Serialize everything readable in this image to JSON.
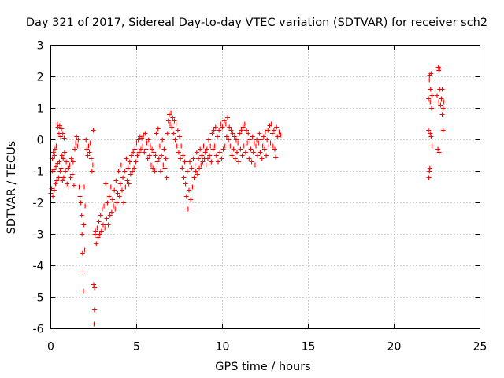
{
  "chart_data": {
    "type": "scatter",
    "title": "Day 321 of 2017, Sidereal Day-to-day VTEC variation (SDTVAR) for receiver sch2",
    "xlabel": "GPS time / hours",
    "ylabel": "SDTVAR / TECUs",
    "xlim": [
      0,
      25
    ],
    "ylim": [
      -6,
      3
    ],
    "xticks": [
      "0",
      "5",
      "10",
      "15",
      "20",
      "25"
    ],
    "yticks": [
      "-6",
      "-5",
      "-4",
      "-3",
      "-2",
      "-1",
      "0",
      "1",
      "2",
      "3"
    ],
    "grid": true,
    "marker": "+",
    "color": "#ff0000",
    "series": [
      {
        "name": "SDTVAR",
        "points": [
          [
            0.0,
            -1.7
          ],
          [
            0.05,
            -1.55
          ],
          [
            0.08,
            -1.0
          ],
          [
            0.1,
            -0.6
          ],
          [
            0.12,
            -1.8
          ],
          [
            0.15,
            -0.4
          ],
          [
            0.18,
            -0.95
          ],
          [
            0.2,
            -1.6
          ],
          [
            0.22,
            -0.5
          ],
          [
            0.25,
            -0.3
          ],
          [
            0.28,
            -1.4
          ],
          [
            0.3,
            -0.85
          ],
          [
            0.32,
            -0.2
          ],
          [
            0.35,
            -1.3
          ],
          [
            0.38,
            0.5
          ],
          [
            0.4,
            -0.75
          ],
          [
            0.42,
            0.4
          ],
          [
            0.45,
            -1.2
          ],
          [
            0.48,
            0.2
          ],
          [
            0.5,
            -0.7
          ],
          [
            0.52,
            0.45
          ],
          [
            0.55,
            -1.0
          ],
          [
            0.58,
            0.1
          ],
          [
            0.6,
            -0.9
          ],
          [
            0.62,
            0.35
          ],
          [
            0.65,
            -0.5
          ],
          [
            0.68,
            -1.3
          ],
          [
            0.7,
            0.2
          ],
          [
            0.72,
            -0.6
          ],
          [
            0.75,
            -1.2
          ],
          [
            0.78,
            0.05
          ],
          [
            0.8,
            -0.4
          ],
          [
            0.85,
            -1.0
          ],
          [
            0.9,
            -0.7
          ],
          [
            0.95,
            -1.4
          ],
          [
            1.0,
            -0.9
          ],
          [
            1.05,
            -1.5
          ],
          [
            1.1,
            -0.8
          ],
          [
            1.15,
            -1.2
          ],
          [
            1.2,
            -0.6
          ],
          [
            1.25,
            -1.1
          ],
          [
            1.3,
            -0.7
          ],
          [
            1.35,
            -1.45
          ],
          [
            1.4,
            -0.3
          ],
          [
            1.45,
            -0.1
          ],
          [
            1.5,
            0.1
          ],
          [
            1.55,
            -0.2
          ],
          [
            1.6,
            0.0
          ],
          [
            1.65,
            -1.5
          ],
          [
            1.7,
            -1.8
          ],
          [
            1.75,
            -2.0
          ],
          [
            1.8,
            -2.4
          ],
          [
            1.82,
            -3.0
          ],
          [
            1.85,
            -3.6
          ],
          [
            1.88,
            -4.2
          ],
          [
            1.9,
            -4.8
          ],
          [
            1.92,
            -2.7
          ],
          [
            1.95,
            -1.5
          ],
          [
            1.98,
            -3.5
          ],
          [
            2.0,
            -2.1
          ],
          [
            2.05,
            0.0
          ],
          [
            2.1,
            -0.3
          ],
          [
            2.15,
            -0.5
          ],
          [
            2.2,
            -0.2
          ],
          [
            2.25,
            -0.4
          ],
          [
            2.3,
            -0.1
          ],
          [
            2.35,
            -0.6
          ],
          [
            2.4,
            -1.0
          ],
          [
            2.45,
            -0.8
          ],
          [
            2.48,
            0.3
          ],
          [
            2.5,
            -4.6
          ],
          [
            2.52,
            -5.85
          ],
          [
            2.54,
            -5.4
          ],
          [
            2.55,
            -4.7
          ],
          [
            2.58,
            -3.0
          ],
          [
            2.6,
            -2.9
          ],
          [
            2.65,
            -3.3
          ],
          [
            2.7,
            -2.8
          ],
          [
            2.75,
            -3.1
          ],
          [
            2.8,
            -2.6
          ],
          [
            2.85,
            -3.0
          ],
          [
            2.9,
            -2.4
          ],
          [
            2.95,
            -2.9
          ],
          [
            3.0,
            -2.2
          ],
          [
            3.05,
            -2.7
          ],
          [
            3.1,
            -2.1
          ],
          [
            3.15,
            -2.8
          ],
          [
            3.2,
            -1.4
          ],
          [
            3.25,
            -2.5
          ],
          [
            3.3,
            -2.0
          ],
          [
            3.35,
            -2.7
          ],
          [
            3.4,
            -1.8
          ],
          [
            3.45,
            -2.4
          ],
          [
            3.5,
            -1.5
          ],
          [
            3.55,
            -2.3
          ],
          [
            3.6,
            -1.9
          ],
          [
            3.65,
            -2.1
          ],
          [
            3.7,
            -1.6
          ],
          [
            3.75,
            -2.2
          ],
          [
            3.8,
            -1.3
          ],
          [
            3.85,
            -2.0
          ],
          [
            3.9,
            -1.7
          ],
          [
            3.95,
            -1.0
          ],
          [
            4.0,
            -1.8
          ],
          [
            4.05,
            -1.4
          ],
          [
            4.1,
            -0.8
          ],
          [
            4.15,
            -1.6
          ],
          [
            4.2,
            -1.2
          ],
          [
            4.25,
            -2.0
          ],
          [
            4.3,
            -1.0
          ],
          [
            4.35,
            -1.5
          ],
          [
            4.4,
            -0.6
          ],
          [
            4.45,
            -1.3
          ],
          [
            4.5,
            -0.9
          ],
          [
            4.55,
            -1.4
          ],
          [
            4.6,
            -0.7
          ],
          [
            4.65,
            -1.1
          ],
          [
            4.7,
            -0.5
          ],
          [
            4.75,
            -1.0
          ],
          [
            4.8,
            -0.4
          ],
          [
            4.85,
            -0.9
          ],
          [
            4.9,
            -0.3
          ],
          [
            4.95,
            -0.7
          ],
          [
            5.0,
            -0.1
          ],
          [
            5.05,
            -0.5
          ],
          [
            5.1,
            0.0
          ],
          [
            5.15,
            -0.4
          ],
          [
            5.2,
            0.1
          ],
          [
            5.25,
            -0.3
          ],
          [
            5.3,
            0.05
          ],
          [
            5.35,
            -0.2
          ],
          [
            5.4,
            0.15
          ],
          [
            5.45,
            -0.4
          ],
          [
            5.5,
            0.2
          ],
          [
            5.55,
            -0.3
          ],
          [
            5.6,
            -0.1
          ],
          [
            5.65,
            -0.6
          ],
          [
            5.7,
            0.0
          ],
          [
            5.75,
            -0.5
          ],
          [
            5.8,
            -0.2
          ],
          [
            5.85,
            -0.8
          ],
          [
            5.9,
            -0.3
          ],
          [
            5.95,
            -0.9
          ],
          [
            6.0,
            -0.4
          ],
          [
            6.05,
            -1.0
          ],
          [
            6.1,
            -0.5
          ],
          [
            6.15,
            0.2
          ],
          [
            6.2,
            -0.7
          ],
          [
            6.25,
            0.35
          ],
          [
            6.3,
            -0.6
          ],
          [
            6.35,
            -0.2
          ],
          [
            6.4,
            -1.0
          ],
          [
            6.45,
            -0.5
          ],
          [
            6.5,
            0.0
          ],
          [
            6.55,
            -0.8
          ],
          [
            6.6,
            -0.3
          ],
          [
            6.65,
            -0.9
          ],
          [
            6.7,
            -0.6
          ],
          [
            6.75,
            -1.2
          ],
          [
            6.8,
            0.2
          ],
          [
            6.85,
            0.6
          ],
          [
            6.9,
            0.8
          ],
          [
            6.95,
            0.5
          ],
          [
            7.0,
            0.85
          ],
          [
            7.05,
            0.4
          ],
          [
            7.1,
            0.7
          ],
          [
            7.15,
            0.2
          ],
          [
            7.2,
            0.6
          ],
          [
            7.25,
            0.0
          ],
          [
            7.3,
            0.5
          ],
          [
            7.35,
            -0.2
          ],
          [
            7.4,
            0.3
          ],
          [
            7.45,
            -0.4
          ],
          [
            7.5,
            0.1
          ],
          [
            7.55,
            -0.6
          ],
          [
            7.6,
            -0.2
          ],
          [
            7.65,
            -0.9
          ],
          [
            7.7,
            -0.5
          ],
          [
            7.75,
            -1.2
          ],
          [
            7.8,
            -0.7
          ],
          [
            7.85,
            -1.4
          ],
          [
            7.9,
            -1.8
          ],
          [
            7.95,
            -1.0
          ],
          [
            8.0,
            -2.2
          ],
          [
            8.05,
            -1.6
          ],
          [
            8.1,
            -0.7
          ],
          [
            8.15,
            -1.9
          ],
          [
            8.2,
            -0.9
          ],
          [
            8.25,
            -1.5
          ],
          [
            8.3,
            -0.6
          ],
          [
            8.35,
            -1.2
          ],
          [
            8.4,
            -0.8
          ],
          [
            8.45,
            -1.0
          ],
          [
            8.5,
            -0.4
          ],
          [
            8.55,
            -1.1
          ],
          [
            8.6,
            -0.6
          ],
          [
            8.65,
            -0.9
          ],
          [
            8.7,
            -0.3
          ],
          [
            8.75,
            -0.8
          ],
          [
            8.8,
            -0.5
          ],
          [
            8.85,
            -0.7
          ],
          [
            8.9,
            -0.2
          ],
          [
            8.95,
            -0.6
          ],
          [
            9.0,
            -0.4
          ],
          [
            9.05,
            -0.8
          ],
          [
            9.1,
            -0.3
          ],
          [
            9.15,
            -0.6
          ],
          [
            9.2,
            0.0
          ],
          [
            9.25,
            -0.5
          ],
          [
            9.3,
            -0.2
          ],
          [
            9.35,
            -0.7
          ],
          [
            9.4,
            0.2
          ],
          [
            9.45,
            -0.3
          ],
          [
            9.5,
            0.3
          ],
          [
            9.55,
            -0.2
          ],
          [
            9.6,
            0.4
          ],
          [
            9.65,
            -0.5
          ],
          [
            9.7,
            0.1
          ],
          [
            9.75,
            -0.7
          ],
          [
            9.8,
            0.3
          ],
          [
            9.85,
            -0.4
          ],
          [
            9.9,
            0.5
          ],
          [
            9.95,
            -0.6
          ],
          [
            10.0,
            0.4
          ],
          [
            10.05,
            -0.3
          ],
          [
            10.1,
            0.6
          ],
          [
            10.15,
            -0.2
          ],
          [
            10.2,
            0.5
          ],
          [
            10.25,
            0.1
          ],
          [
            10.3,
            0.7
          ],
          [
            10.35,
            0.0
          ],
          [
            10.4,
            0.4
          ],
          [
            10.45,
            -0.2
          ],
          [
            10.5,
            0.3
          ],
          [
            10.55,
            -0.5
          ],
          [
            10.6,
            0.2
          ],
          [
            10.65,
            -0.3
          ],
          [
            10.7,
            0.1
          ],
          [
            10.75,
            -0.6
          ],
          [
            10.8,
            0.0
          ],
          [
            10.85,
            -0.4
          ],
          [
            10.9,
            -0.1
          ],
          [
            10.95,
            -0.7
          ],
          [
            11.0,
            0.2
          ],
          [
            11.05,
            -0.3
          ],
          [
            11.1,
            0.3
          ],
          [
            11.15,
            -0.5
          ],
          [
            11.2,
            0.4
          ],
          [
            11.25,
            -0.2
          ],
          [
            11.3,
            0.5
          ],
          [
            11.35,
            -0.4
          ],
          [
            11.4,
            0.3
          ],
          [
            11.45,
            -0.1
          ],
          [
            11.5,
            0.2
          ],
          [
            11.55,
            -0.6
          ],
          [
            11.6,
            0.0
          ],
          [
            11.65,
            -0.3
          ],
          [
            11.7,
            -0.7
          ],
          [
            11.75,
            0.1
          ],
          [
            11.8,
            -0.4
          ],
          [
            11.85,
            -0.1
          ],
          [
            11.9,
            -0.8
          ],
          [
            11.95,
            -0.2
          ],
          [
            12.0,
            0.0
          ],
          [
            12.05,
            -0.5
          ],
          [
            12.1,
            -0.1
          ],
          [
            12.15,
            0.2
          ],
          [
            12.2,
            -0.4
          ],
          [
            12.25,
            0.0
          ],
          [
            12.3,
            -0.6
          ],
          [
            12.35,
            -0.2
          ],
          [
            12.4,
            0.1
          ],
          [
            12.45,
            -0.3
          ],
          [
            12.5,
            0.25
          ],
          [
            12.55,
            -0.5
          ],
          [
            12.6,
            0.0
          ],
          [
            12.65,
            0.3
          ],
          [
            12.7,
            -0.2
          ],
          [
            12.75,
            0.45
          ],
          [
            12.8,
            -0.1
          ],
          [
            12.85,
            0.5
          ],
          [
            12.9,
            0.2
          ],
          [
            12.95,
            -0.2
          ],
          [
            13.0,
            0.3
          ],
          [
            13.05,
            -0.3
          ],
          [
            13.1,
            -0.55
          ],
          [
            13.15,
            0.4
          ],
          [
            13.2,
            0.1
          ],
          [
            13.3,
            0.25
          ],
          [
            13.4,
            0.15
          ],
          [
            22.0,
            1.3
          ],
          [
            22.0,
            0.3
          ],
          [
            22.02,
            -1.2
          ],
          [
            22.05,
            1.9
          ],
          [
            22.05,
            -1.0
          ],
          [
            22.07,
            2.05
          ],
          [
            22.08,
            -0.9
          ],
          [
            22.1,
            1.2
          ],
          [
            22.1,
            0.2
          ],
          [
            22.12,
            1.6
          ],
          [
            22.15,
            2.1
          ],
          [
            22.15,
            0.1
          ],
          [
            22.18,
            1.0
          ],
          [
            22.2,
            -0.2
          ],
          [
            22.2,
            1.4
          ],
          [
            22.5,
            1.4
          ],
          [
            22.55,
            -0.3
          ],
          [
            22.58,
            2.3
          ],
          [
            22.6,
            1.2
          ],
          [
            22.6,
            2.2
          ],
          [
            22.62,
            -0.4
          ],
          [
            22.65,
            1.6
          ],
          [
            22.65,
            2.25
          ],
          [
            22.7,
            1.1
          ],
          [
            22.75,
            1.3
          ],
          [
            22.8,
            0.8
          ],
          [
            22.8,
            1.6
          ],
          [
            22.85,
            0.3
          ],
          [
            22.85,
            1.0
          ],
          [
            22.9,
            1.2
          ]
        ]
      }
    ]
  }
}
